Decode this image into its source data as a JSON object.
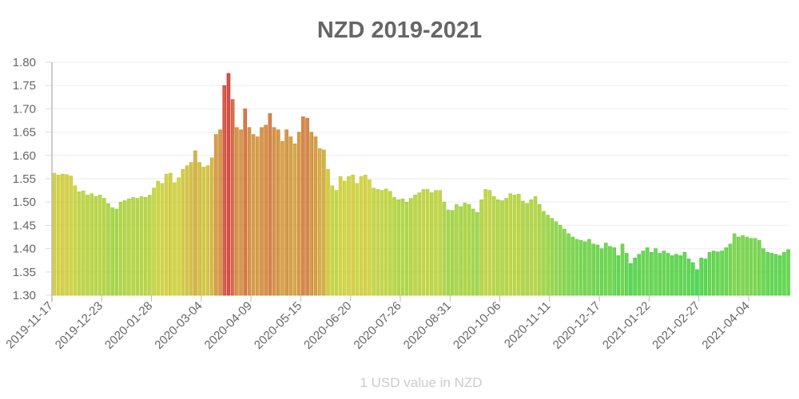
{
  "chart_data": {
    "type": "bar",
    "title": "NZD 2019-2021",
    "xlabel": "1 USD value in NZD",
    "ylabel": "",
    "ylim": [
      1.3,
      1.8
    ],
    "yticks": [
      "1.30",
      "1.35",
      "1.40",
      "1.45",
      "1.50",
      "1.55",
      "1.60",
      "1.65",
      "1.70",
      "1.75",
      "1.80"
    ],
    "xticks": [
      "2019-11-17",
      "2019-12-23",
      "2020-01-28",
      "2020-03-04",
      "2020-04-09",
      "2020-05-15",
      "2020-06-20",
      "2020-07-26",
      "2020-08-31",
      "2020-10-06",
      "2020-11-11",
      "2020-12-17",
      "2021-01-22",
      "2021-02-27",
      "2021-04-04"
    ],
    "x_start": "2019-11-17",
    "x_step_days": 3,
    "grid": true,
    "legend": "none",
    "color_scale": {
      "low": "#22cc33",
      "mid": "#c8cc22",
      "high": "#cc2222"
    },
    "values": [
      1.562,
      1.558,
      1.56,
      1.559,
      1.556,
      1.535,
      1.522,
      1.524,
      1.515,
      1.518,
      1.512,
      1.515,
      1.508,
      1.497,
      1.488,
      1.485,
      1.5,
      1.503,
      1.507,
      1.51,
      1.508,
      1.512,
      1.51,
      1.515,
      1.53,
      1.545,
      1.54,
      1.56,
      1.562,
      1.542,
      1.552,
      1.57,
      1.578,
      1.585,
      1.61,
      1.585,
      1.575,
      1.578,
      1.595,
      1.645,
      1.655,
      1.75,
      1.776,
      1.72,
      1.66,
      1.655,
      1.7,
      1.66,
      1.645,
      1.64,
      1.66,
      1.665,
      1.69,
      1.66,
      1.655,
      1.63,
      1.655,
      1.64,
      1.625,
      1.65,
      1.683,
      1.68,
      1.65,
      1.64,
      1.615,
      1.612,
      1.57,
      1.535,
      1.525,
      1.555,
      1.545,
      1.555,
      1.558,
      1.54,
      1.555,
      1.558,
      1.548,
      1.53,
      1.527,
      1.525,
      1.528,
      1.523,
      1.51,
      1.505,
      1.507,
      1.5,
      1.508,
      1.515,
      1.52,
      1.527,
      1.527,
      1.52,
      1.525,
      1.525,
      1.5,
      1.483,
      1.482,
      1.495,
      1.49,
      1.498,
      1.495,
      1.485,
      1.478,
      1.505,
      1.527,
      1.525,
      1.512,
      1.505,
      1.503,
      1.508,
      1.518,
      1.515,
      1.517,
      1.502,
      1.497,
      1.505,
      1.512,
      1.495,
      1.48,
      1.472,
      1.465,
      1.458,
      1.45,
      1.442,
      1.432,
      1.425,
      1.42,
      1.418,
      1.415,
      1.42,
      1.41,
      1.408,
      1.4,
      1.412,
      1.405,
      1.402,
      1.385,
      1.41,
      1.39,
      1.368,
      1.38,
      1.388,
      1.395,
      1.402,
      1.392,
      1.4,
      1.39,
      1.395,
      1.39,
      1.385,
      1.388,
      1.385,
      1.392,
      1.378,
      1.37,
      1.355,
      1.38,
      1.378,
      1.392,
      1.395,
      1.393,
      1.395,
      1.402,
      1.41,
      1.432,
      1.425,
      1.428,
      1.425,
      1.422,
      1.422,
      1.418,
      1.4,
      1.392,
      1.39,
      1.388,
      1.385,
      1.392,
      1.398
    ]
  }
}
